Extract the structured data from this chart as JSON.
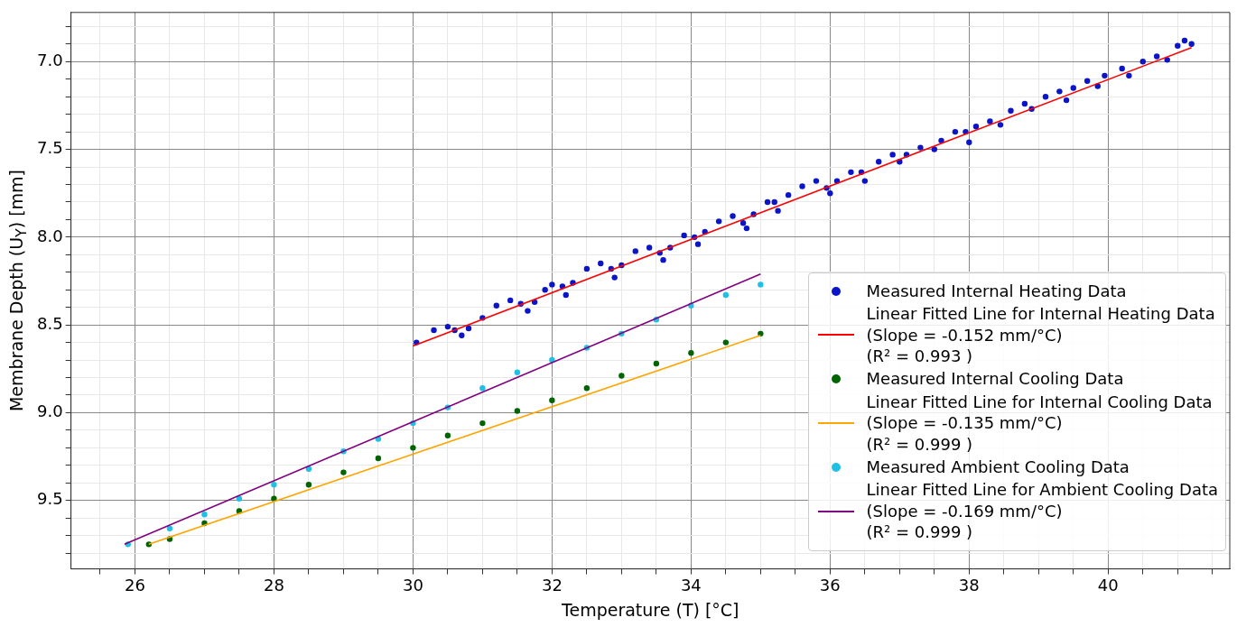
{
  "chart_data": {
    "type": "scatter",
    "xlabel": "Temperature (T) [°C]",
    "ylabel": "Membrane Depth (U$_{Y}$) [mm]",
    "xlim": [
      25.08,
      41.75
    ],
    "ylim": [
      9.89,
      6.72
    ],
    "xticks": [
      {
        "value": 25.5,
        "label": null
      },
      26,
      {
        "value": 26.5,
        "label": null
      },
      {
        "value": 27,
        "label": null
      },
      {
        "value": 27.5,
        "label": null
      },
      28,
      {
        "value": 28.5,
        "label": null
      },
      {
        "value": 29,
        "label": null
      },
      {
        "value": 29.5,
        "label": null
      },
      30,
      {
        "value": 30.5,
        "label": null
      },
      {
        "value": 31,
        "label": null
      },
      {
        "value": 31.5,
        "label": null
      },
      32,
      {
        "value": 32.5,
        "label": null
      },
      {
        "value": 33,
        "label": null
      },
      {
        "value": 33.5,
        "label": null
      },
      34,
      {
        "value": 34.5,
        "label": null
      },
      {
        "value": 35,
        "label": null
      },
      {
        "value": 35.5,
        "label": null
      },
      36,
      {
        "value": 36.5,
        "label": null
      },
      {
        "value": 37,
        "label": null
      },
      {
        "value": 37.5,
        "label": null
      },
      38,
      {
        "value": 38.5,
        "label": null
      },
      {
        "value": 39,
        "label": null
      },
      {
        "value": 39.5,
        "label": null
      },
      40,
      {
        "value": 40.5,
        "label": null
      },
      {
        "value": 41,
        "label": null
      },
      {
        "value": 41.5,
        "label": null
      }
    ],
    "yticks": [
      {
        "value": 6.8,
        "label": null
      },
      {
        "value": 6.9,
        "label": null
      },
      {
        "value": 7.0,
        "label": "7.0"
      },
      {
        "value": 7.1,
        "label": null
      },
      {
        "value": 7.2,
        "label": null
      },
      {
        "value": 7.3,
        "label": null
      },
      {
        "value": 7.4,
        "label": null
      },
      {
        "value": 7.5,
        "label": "7.5"
      },
      {
        "value": 7.6,
        "label": null
      },
      {
        "value": 7.7,
        "label": null
      },
      {
        "value": 7.8,
        "label": null
      },
      {
        "value": 7.9,
        "label": null
      },
      {
        "value": 8.0,
        "label": "8.0"
      },
      {
        "value": 8.1,
        "label": null
      },
      {
        "value": 8.2,
        "label": null
      },
      {
        "value": 8.3,
        "label": null
      },
      {
        "value": 8.4,
        "label": null
      },
      {
        "value": 8.5,
        "label": "8.5"
      },
      {
        "value": 8.6,
        "label": null
      },
      {
        "value": 8.7,
        "label": null
      },
      {
        "value": 8.8,
        "label": null
      },
      {
        "value": 8.9,
        "label": null
      },
      {
        "value": 9.0,
        "label": "9.0"
      },
      {
        "value": 9.1,
        "label": null
      },
      {
        "value": 9.2,
        "label": null
      },
      {
        "value": 9.3,
        "label": null
      },
      {
        "value": 9.4,
        "label": null
      },
      {
        "value": 9.5,
        "label": "9.5"
      },
      {
        "value": 9.6,
        "label": null
      },
      {
        "value": 9.7,
        "label": null
      },
      {
        "value": 9.8,
        "label": null
      }
    ],
    "grid": true,
    "legend": "bottom right",
    "series": [
      {
        "name": "Measured Internal Heating Data",
        "type": "scatter",
        "marker": "circle",
        "color": "#0a14c8",
        "x": [
          30.05,
          30.3,
          30.5,
          30.6,
          30.7,
          30.8,
          31.0,
          31.2,
          31.4,
          31.55,
          31.65,
          31.75,
          31.9,
          32.0,
          32.15,
          32.2,
          32.3,
          32.5,
          32.7,
          32.85,
          32.9,
          33.0,
          33.2,
          33.4,
          33.55,
          33.6,
          33.7,
          33.9,
          34.05,
          34.1,
          34.2,
          34.4,
          34.6,
          34.75,
          34.8,
          34.9,
          35.1,
          35.2,
          35.25,
          35.4,
          35.6,
          35.8,
          35.95,
          36.0,
          36.1,
          36.3,
          36.45,
          36.5,
          36.7,
          36.9,
          37.0,
          37.1,
          37.3,
          37.5,
          37.6,
          37.8,
          37.95,
          38.0,
          38.1,
          38.3,
          38.45,
          38.6,
          38.8,
          38.9,
          39.1,
          39.3,
          39.4,
          39.5,
          39.7,
          39.85,
          39.95,
          40.2,
          40.3,
          40.5,
          40.7,
          40.85,
          41.0,
          41.1,
          41.2
        ],
        "values": [
          8.6,
          8.53,
          8.51,
          8.53,
          8.56,
          8.52,
          8.46,
          8.39,
          8.36,
          8.38,
          8.42,
          8.37,
          8.3,
          8.27,
          8.28,
          8.33,
          8.26,
          8.18,
          8.15,
          8.18,
          8.23,
          8.16,
          8.08,
          8.06,
          8.09,
          8.13,
          8.06,
          7.99,
          8.0,
          8.04,
          7.97,
          7.91,
          7.88,
          7.92,
          7.95,
          7.87,
          7.8,
          7.8,
          7.85,
          7.76,
          7.71,
          7.68,
          7.72,
          7.75,
          7.68,
          7.63,
          7.63,
          7.68,
          7.57,
          7.53,
          7.57,
          7.53,
          7.49,
          7.5,
          7.45,
          7.4,
          7.4,
          7.46,
          7.37,
          7.34,
          7.36,
          7.28,
          7.24,
          7.27,
          7.2,
          7.17,
          7.22,
          7.15,
          7.11,
          7.14,
          7.08,
          7.04,
          7.08,
          7.0,
          6.97,
          6.99,
          6.91,
          6.88,
          6.9
        ]
      },
      {
        "name": "Linear Fitted Line for Internal Heating Data\n(Slope = -0.152 mm/°C)\n(R² = 0.993 )",
        "type": "line",
        "color": "#ff0000",
        "x": [
          30.0,
          41.2
        ],
        "values": [
          8.62,
          6.92
        ]
      },
      {
        "name": "Measured Internal Cooling Data",
        "type": "scatter",
        "marker": "circle",
        "color": "#006400",
        "x": [
          26.2,
          26.5,
          27,
          27.5,
          28,
          28.5,
          29,
          29.5,
          30,
          30.5,
          31,
          31.5,
          32,
          32.5,
          33,
          33.5,
          34,
          34.5,
          35
        ],
        "values": [
          9.75,
          9.72,
          9.63,
          9.56,
          9.49,
          9.41,
          9.34,
          9.26,
          9.2,
          9.13,
          9.06,
          8.99,
          8.93,
          8.86,
          8.79,
          8.72,
          8.66,
          8.6,
          8.55
        ]
      },
      {
        "name": "Linear Fitted Line for Internal Cooling Data\n(Slope = -0.135 mm/°C)\n(R² = 0.999 )",
        "type": "line",
        "color": "#ffa500",
        "x": [
          26.2,
          35.0
        ],
        "values": [
          9.75,
          8.56
        ]
      },
      {
        "name": "Measured Ambient Cooling Data",
        "type": "scatter",
        "marker": "circle",
        "color": "#1ec0e6",
        "x": [
          25.9,
          26.5,
          27,
          27.5,
          28,
          28.5,
          29,
          29.5,
          30,
          30.5,
          31,
          31.5,
          32,
          32.5,
          33,
          33.5,
          34,
          34.5,
          35
        ],
        "values": [
          9.75,
          9.66,
          9.58,
          9.49,
          9.41,
          9.32,
          9.22,
          9.15,
          9.06,
          8.97,
          8.86,
          8.77,
          8.7,
          8.63,
          8.55,
          8.47,
          8.39,
          8.33,
          8.27
        ]
      },
      {
        "name": "Linear Fitted Line for Ambient Cooling Data\n(Slope = -0.169 mm/°C)\n(R² = 0.999 )",
        "type": "line",
        "color": "#800080",
        "x": [
          25.85,
          35.0
        ],
        "values": [
          9.75,
          8.21
        ]
      }
    ]
  }
}
